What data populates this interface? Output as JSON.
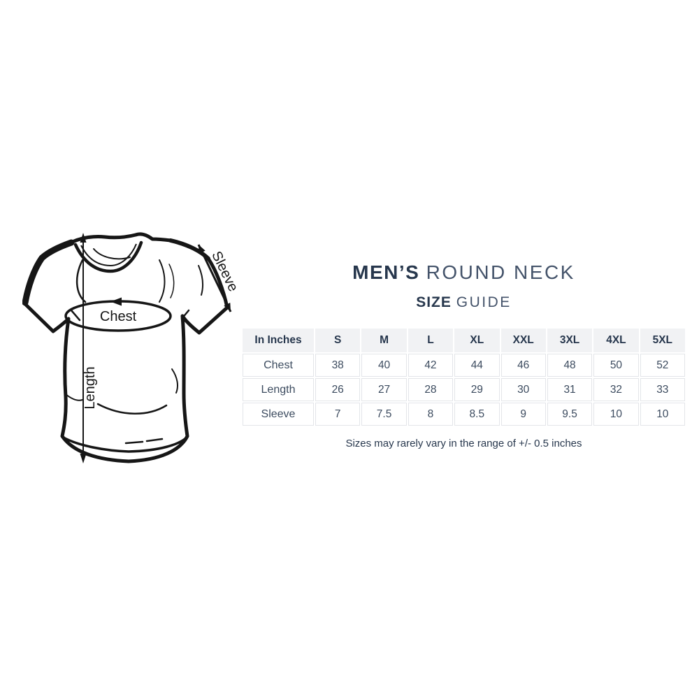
{
  "header": {
    "line1_bold": "MEN’S",
    "line1_regular": "ROUND NECK",
    "line2_bold": "SIZE",
    "line2_regular": "GUIDE"
  },
  "diagram": {
    "chest_label": "Chest",
    "length_label": "Length",
    "sleeve_label": "Sleeve"
  },
  "size_table": {
    "unit_header": "In Inches",
    "size_columns": [
      "S",
      "M",
      "L",
      "XL",
      "XXL",
      "3XL",
      "4XL",
      "5XL"
    ],
    "rows": [
      {
        "label": "Chest",
        "values": [
          "38",
          "40",
          "42",
          "44",
          "46",
          "48",
          "50",
          "52"
        ]
      },
      {
        "label": "Length",
        "values": [
          "26",
          "27",
          "28",
          "29",
          "30",
          "31",
          "32",
          "33"
        ]
      },
      {
        "label": "Sleeve",
        "values": [
          "7",
          "7.5",
          "8",
          "8.5",
          "9",
          "9.5",
          "10",
          "10"
        ]
      }
    ]
  },
  "footnote": "Sizes may rarely vary in the range of +/- 0.5 inches",
  "colors": {
    "accent_navy": "#27374d",
    "title_secondary": "#44536a",
    "table_text": "#3c4b5f",
    "table_header_bg": "#f1f2f4",
    "table_cell_border": "#e3e5e9",
    "ink": "#161616",
    "background": "#ffffff"
  }
}
